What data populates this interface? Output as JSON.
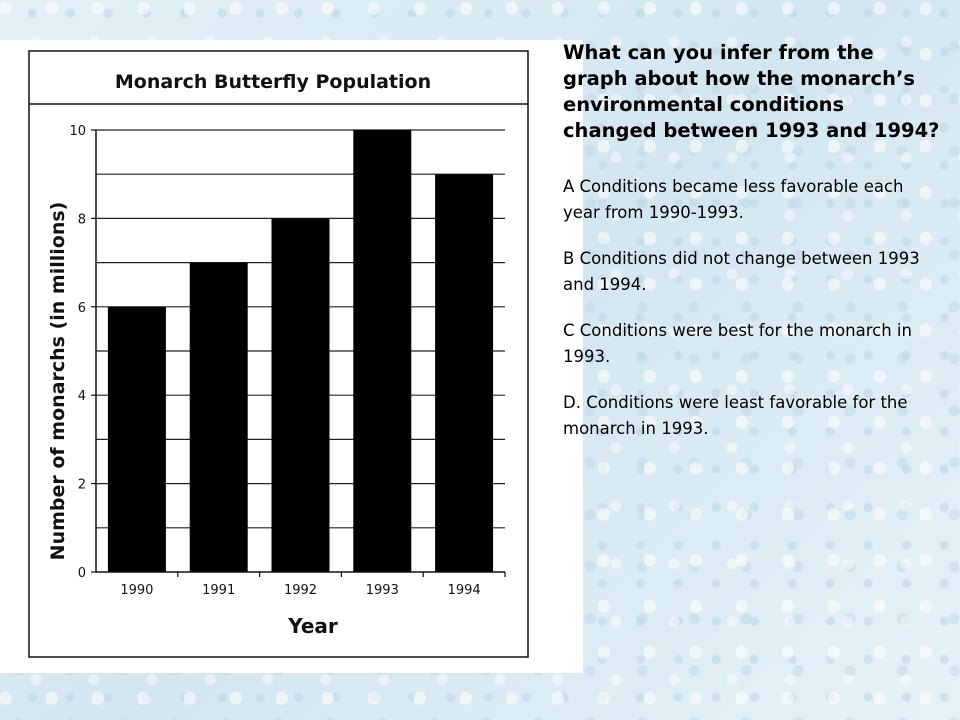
{
  "question": "What can you infer from the graph about how the monarch’s environmental conditions changed between 1993 and 1994?",
  "options": [
    {
      "text": "A  Conditions became less favorable each year from 1990-1993."
    },
    {
      "text": "B  Conditions did not change between 1993 and 1994."
    },
    {
      "text": "C  Conditions were best for the monarch in 1993."
    },
    {
      "text": "D. Conditions were least favorable for the monarch in 1993."
    }
  ],
  "chart_data": {
    "type": "bar",
    "title": "Monarch Butterfly Population",
    "xlabel": "Year",
    "ylabel": "Number of monarchs (in millions)",
    "categories": [
      "1990",
      "1991",
      "1992",
      "1993",
      "1994"
    ],
    "values": [
      6,
      7,
      8,
      10,
      9
    ],
    "ylim": [
      0,
      10
    ],
    "yticks": [
      0,
      2,
      4,
      6,
      8,
      10
    ],
    "grid": true,
    "bar_color": "#000000"
  }
}
